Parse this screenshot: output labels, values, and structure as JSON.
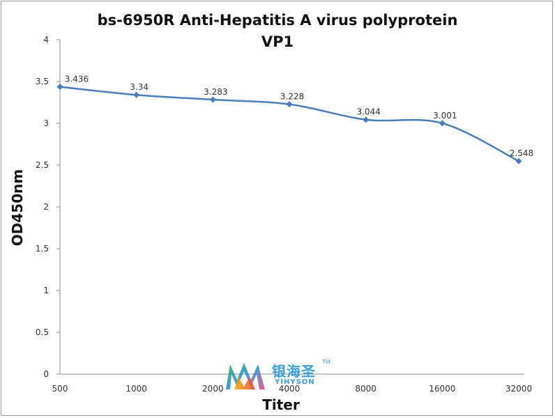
{
  "chart_data": {
    "type": "line",
    "title_line1": "bs-6950R Anti-Hepatitis A virus polyprotein",
    "title_line2": "VP1",
    "xlabel": "Titer",
    "ylabel": "OD450nm",
    "categories": [
      "500",
      "1000",
      "2000",
      "4000",
      "8000",
      "16000",
      "32000"
    ],
    "values": [
      3.436,
      3.34,
      3.283,
      3.228,
      3.044,
      3.001,
      2.548
    ],
    "value_labels": [
      "3.436",
      "3.34",
      "3.283",
      "3.228",
      "3.044",
      "3.001",
      "2.548"
    ],
    "ylim": [
      0,
      4
    ],
    "yticks": [
      "0",
      "0.5",
      "1",
      "1.5",
      "2",
      "2.5",
      "3",
      "3.5",
      "4"
    ],
    "grid": false,
    "legend": "none",
    "line_color": "#4a7ebb"
  },
  "watermark": {
    "chinese_text": "银海圣",
    "trademark": "TM",
    "english_text": "YIHYSON"
  }
}
